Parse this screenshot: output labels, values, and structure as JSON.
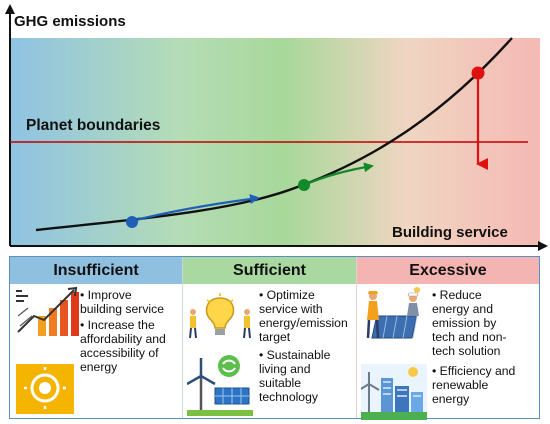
{
  "graph": {
    "y_axis_label": "GHG emissions",
    "x_axis_label": "Building service",
    "boundary_label": "Planet boundaries",
    "colors": {
      "gradient": [
        "#8fc3e3",
        "#b4dcb6",
        "#a8d89a",
        "#f0d5c2",
        "#f5b9b4"
      ],
      "boundary_line": "#c00000",
      "insufficient_arrow": "#1f5fb8",
      "sufficient_arrow": "#138a2a",
      "excessive_arrow": "#e01010"
    }
  },
  "panels": [
    {
      "title": "Insufficient",
      "bullets": [
        "• Improve\nbuilding service",
        "• Increase the\naffordability and\naccessibility of\nenergy"
      ],
      "icons": [
        "power-lines-chart-icon",
        "solar-switch-icon"
      ]
    },
    {
      "title": "Sufficient",
      "bullets": [
        "• Optimize\nservice with\nenergy/emission\ntarget",
        "• Sustainable\nliving and\nsuitable\ntechnology"
      ],
      "icons": [
        "lightbulb-people-icon",
        "wind-solar-recycle-icon"
      ]
    },
    {
      "title": "Excessive",
      "bullets": [
        "• Reduce\nenergy and\nemission by\ntech and non-\ntech solution",
        "• Efficiency and\nrenewable\nenergy"
      ],
      "icons": [
        "workers-solar-panel-icon",
        "green-city-wind-icon"
      ]
    }
  ]
}
